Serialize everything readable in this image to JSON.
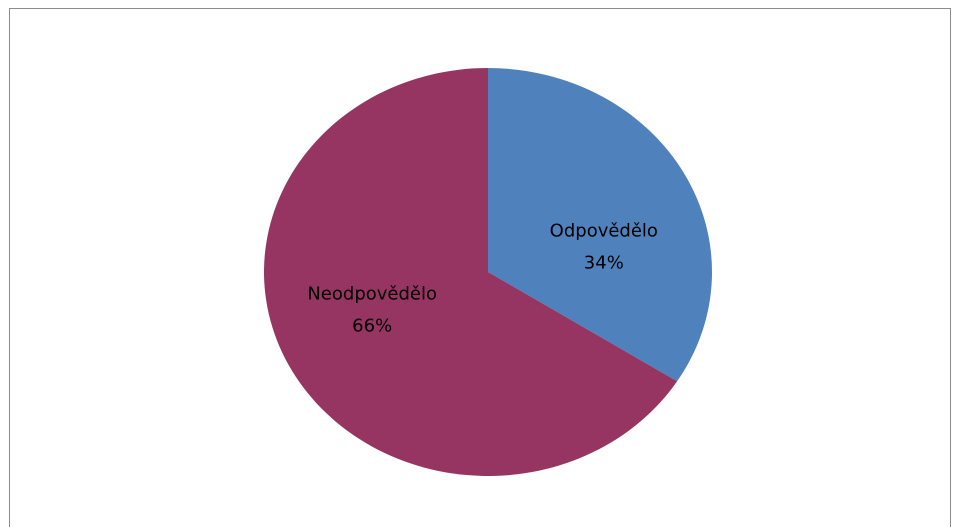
{
  "chart_data": {
    "type": "pie",
    "title": "",
    "slices": [
      {
        "label": "Odpovědělo",
        "value": 34,
        "percent_label": "34%",
        "color": "#4f81bd"
      },
      {
        "label": "Neodpovědělo",
        "value": 66,
        "percent_label": "66%",
        "color": "#963462"
      }
    ],
    "start_angle": "12 o'clock",
    "direction": "clockwise",
    "legend": "none",
    "data_labels": "inside slices (category name and percentage)"
  }
}
